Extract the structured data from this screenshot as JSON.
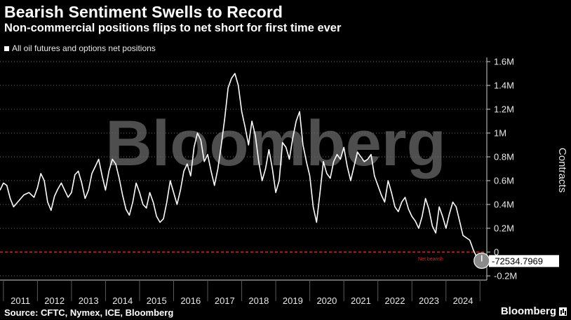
{
  "header": {
    "title": "Bearish Sentiment Swells to Record",
    "subtitle": "Non-commercial positions flips to net short for first time ever"
  },
  "footer": {
    "source": "Source: CFTC, Nymex, ICE, Bloomberg",
    "brand": "Bloomberg"
  },
  "watermark": "Bloomberg",
  "colors": {
    "background": "#000000",
    "line": "#ffffff",
    "zero_line": "#e0201c",
    "grid": "#6a6a6a",
    "watermark": "#5c5c5c"
  },
  "chart_data": {
    "type": "line",
    "title": "Bearish Sentiment Swells to Record",
    "subtitle": "Non-commercial positions flips to net short for first time ever",
    "xlabel": "",
    "ylabel": "Contracts",
    "legend": [
      "All oil futures and options net positions"
    ],
    "legend_position": "top-left",
    "x_ticks": [
      "2011",
      "2012",
      "2013",
      "2014",
      "2015",
      "2016",
      "2017",
      "2018",
      "2019",
      "2020",
      "2021",
      "2022",
      "2023",
      "2024"
    ],
    "y_ticks": [
      "-0.2M",
      "0",
      "0.2M",
      "0.4M",
      "0.6M",
      "0.8M",
      "1M",
      "1.2M",
      "1.4M",
      "1.6M"
    ],
    "ylim": [
      -250000,
      1650000
    ],
    "xlim": [
      2010.9,
      2025.2
    ],
    "grid": "horizontal-dotted",
    "zero_line_label": "Net bearish",
    "last_value_label": "-72534.7969",
    "series": [
      {
        "name": "All oil futures and options net positions",
        "x": [
          2010.9,
          2011.0,
          2011.1,
          2011.2,
          2011.3,
          2011.45,
          2011.6,
          2011.75,
          2011.9,
          2012.0,
          2012.1,
          2012.2,
          2012.3,
          2012.4,
          2012.5,
          2012.6,
          2012.7,
          2012.8,
          2012.9,
          2013.0,
          2013.1,
          2013.2,
          2013.3,
          2013.4,
          2013.5,
          2013.6,
          2013.7,
          2013.8,
          2013.9,
          2014.0,
          2014.1,
          2014.2,
          2014.3,
          2014.4,
          2014.5,
          2014.6,
          2014.7,
          2014.8,
          2014.9,
          2015.0,
          2015.1,
          2015.2,
          2015.3,
          2015.4,
          2015.5,
          2015.6,
          2015.7,
          2015.8,
          2015.9,
          2016.0,
          2016.1,
          2016.2,
          2016.3,
          2016.4,
          2016.5,
          2016.6,
          2016.7,
          2016.8,
          2016.9,
          2017.0,
          2017.1,
          2017.2,
          2017.3,
          2017.4,
          2017.5,
          2017.6,
          2017.7,
          2017.8,
          2017.9,
          2018.0,
          2018.1,
          2018.2,
          2018.3,
          2018.4,
          2018.5,
          2018.6,
          2018.7,
          2018.8,
          2018.9,
          2019.0,
          2019.1,
          2019.2,
          2019.3,
          2019.4,
          2019.5,
          2019.6,
          2019.7,
          2019.8,
          2019.9,
          2020.0,
          2020.1,
          2020.2,
          2020.3,
          2020.4,
          2020.5,
          2020.6,
          2020.7,
          2020.8,
          2020.9,
          2021.0,
          2021.1,
          2021.2,
          2021.3,
          2021.4,
          2021.5,
          2021.6,
          2021.7,
          2021.8,
          2021.9,
          2022.0,
          2022.1,
          2022.2,
          2022.3,
          2022.4,
          2022.5,
          2022.6,
          2022.7,
          2022.8,
          2022.9,
          2023.0,
          2023.1,
          2023.2,
          2023.3,
          2023.4,
          2023.5,
          2023.6,
          2023.7,
          2023.8,
          2023.9,
          2024.0,
          2024.1,
          2024.2,
          2024.3,
          2024.4,
          2024.5,
          2024.6,
          2024.7,
          2024.75,
          2024.8,
          2024.9,
          2025.0,
          2025.05
        ],
        "values": [
          520000,
          580000,
          560000,
          450000,
          380000,
          430000,
          480000,
          500000,
          460000,
          540000,
          660000,
          600000,
          420000,
          350000,
          470000,
          530000,
          580000,
          520000,
          460000,
          500000,
          650000,
          680000,
          580000,
          450000,
          520000,
          660000,
          720000,
          780000,
          640000,
          520000,
          680000,
          780000,
          740000,
          620000,
          480000,
          360000,
          310000,
          420000,
          580000,
          500000,
          400000,
          370000,
          500000,
          420000,
          300000,
          250000,
          280000,
          420000,
          600000,
          500000,
          400000,
          520000,
          680000,
          740000,
          640000,
          880000,
          1000000,
          940000,
          760000,
          820000,
          680000,
          560000,
          700000,
          900000,
          1120000,
          1380000,
          1460000,
          1500000,
          1400000,
          1180000,
          1050000,
          900000,
          1100000,
          980000,
          760000,
          600000,
          700000,
          860000,
          700000,
          500000,
          600000,
          920000,
          880000,
          780000,
          960000,
          1100000,
          1180000,
          900000,
          760000,
          640000,
          380000,
          250000,
          500000,
          760000,
          660000,
          620000,
          760000,
          820000,
          780000,
          880000,
          720000,
          600000,
          720000,
          840000,
          800000,
          760000,
          780000,
          820000,
          640000,
          560000,
          480000,
          420000,
          600000,
          500000,
          380000,
          340000,
          420000,
          460000,
          360000,
          300000,
          260000,
          200000,
          300000,
          450000,
          360000,
          220000,
          160000,
          380000,
          300000,
          200000,
          320000,
          420000,
          380000,
          260000,
          140000,
          120000,
          100000,
          60000,
          20000,
          -40000,
          -72535,
          -72535
        ]
      }
    ]
  }
}
